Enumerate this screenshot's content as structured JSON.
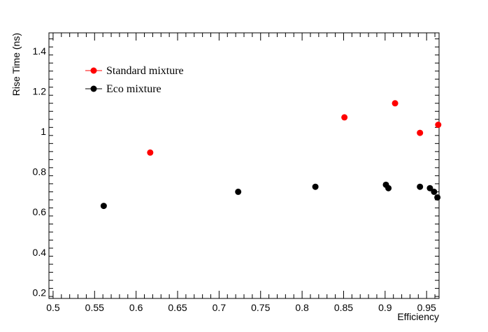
{
  "chart_data": {
    "type": "scatter",
    "title": "",
    "xlabel": "Efficiency",
    "ylabel": "Rise Time (ns)",
    "xlim": [
      0.495,
      0.965
    ],
    "ylim": [
      0.17,
      1.49
    ],
    "x_ticks": [
      "0.5",
      "0.55",
      "0.6",
      "0.65",
      "0.7",
      "0.75",
      "0.8",
      "0.85",
      "0.9",
      "0.95"
    ],
    "y_ticks": [
      "0.2",
      "0.4",
      "0.6",
      "0.8",
      "1",
      "1.2",
      "1.4"
    ],
    "grid": false,
    "legend_position": "top-left",
    "series": [
      {
        "name": "Standard mixture",
        "color": "#ff0000",
        "points": [
          {
            "x": 0.617,
            "y": 0.895
          },
          {
            "x": 0.851,
            "y": 1.07
          },
          {
            "x": 0.912,
            "y": 1.14
          },
          {
            "x": 0.942,
            "y": 0.993
          },
          {
            "x": 0.964,
            "y": 1.033
          }
        ]
      },
      {
        "name": "Eco mixture",
        "color": "#000000",
        "points": [
          {
            "x": 0.561,
            "y": 0.63
          },
          {
            "x": 0.723,
            "y": 0.7
          },
          {
            "x": 0.816,
            "y": 0.725
          },
          {
            "x": 0.901,
            "y": 0.735
          },
          {
            "x": 0.904,
            "y": 0.718
          },
          {
            "x": 0.942,
            "y": 0.725
          },
          {
            "x": 0.954,
            "y": 0.718
          },
          {
            "x": 0.959,
            "y": 0.7
          },
          {
            "x": 0.963,
            "y": 0.672
          }
        ]
      }
    ]
  }
}
